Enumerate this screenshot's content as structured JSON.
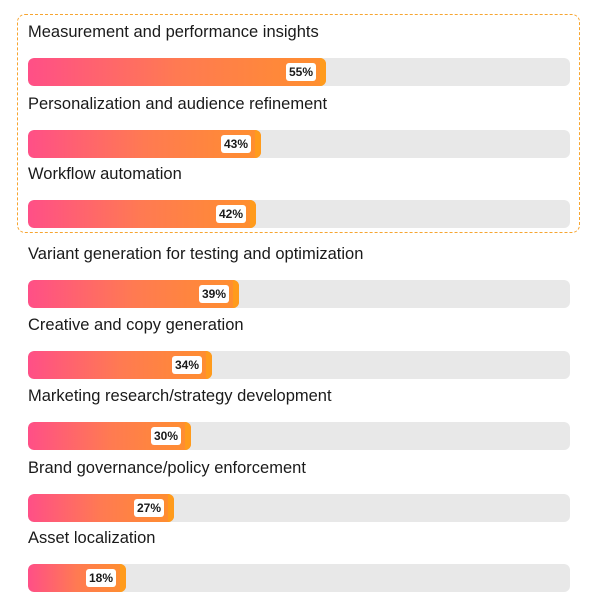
{
  "chart_data": {
    "type": "bar",
    "orientation": "horizontal",
    "categories": [
      "Measurement and performance insights",
      "Personalization and audience refinement",
      "Workflow automation",
      "Variant generation for testing and optimization",
      "Creative and copy generation",
      "Marketing research/strategy development",
      "Brand governance/policy enforcement",
      "Asset localization"
    ],
    "values": [
      55,
      43,
      42,
      39,
      34,
      30,
      27,
      18
    ],
    "value_labels": [
      "55%",
      "43%",
      "42%",
      "39%",
      "34%",
      "30%",
      "27%",
      "18%"
    ],
    "xlim": [
      0,
      100
    ],
    "highlighted_count": 3,
    "colors": {
      "gradient_start": "#ff4f87",
      "gradient_end": "#ff8f2e",
      "bar_edge": "#ff9b1c",
      "track": "#e8e8e8",
      "highlight_border": "#f7a530"
    }
  }
}
